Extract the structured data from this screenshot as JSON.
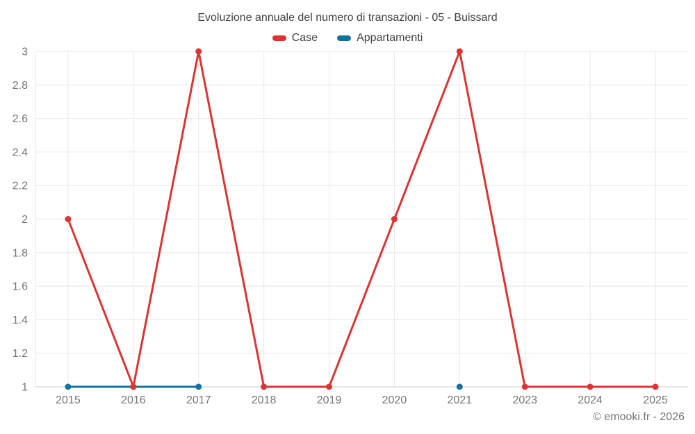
{
  "page": {
    "footer": "© emooki.fr - 2026"
  },
  "chart_data": {
    "type": "line",
    "title": "Evoluzione annuale del numero di transazioni - 05 - Buissard",
    "xlabel": "",
    "ylabel": "",
    "categories": [
      "2015",
      "2016",
      "2017",
      "2018",
      "2019",
      "2020",
      "2021",
      "2023",
      "2024",
      "2025"
    ],
    "series": [
      {
        "name": "Case",
        "color": "#dc3333",
        "values": [
          2,
          1,
          3,
          1,
          1,
          2,
          3,
          1,
          1,
          1
        ]
      },
      {
        "name": "Appartamenti",
        "color": "#1272a2",
        "values": [
          1,
          1,
          1,
          null,
          null,
          null,
          1,
          null,
          null,
          null
        ]
      }
    ],
    "ylim": [
      1,
      3
    ],
    "yticks": {
      "values": [
        1,
        1.2,
        1.4,
        1.6,
        1.8,
        2,
        2.2,
        2.4,
        2.6,
        2.8,
        3
      ],
      "labels": [
        "1",
        "1.2",
        "1.4",
        "1.6",
        "1.8",
        "2",
        "2.2",
        "2.4",
        "2.6",
        "2.8",
        "3"
      ]
    },
    "grid": true,
    "legend_position": "top",
    "style_colors": {
      "grid_line": "#e8e8e8",
      "axis_line": "#c9c9c9",
      "tick_label": "#757575",
      "title_text": "#424242",
      "legend_text": "#424242",
      "background": "#ffffff"
    }
  }
}
